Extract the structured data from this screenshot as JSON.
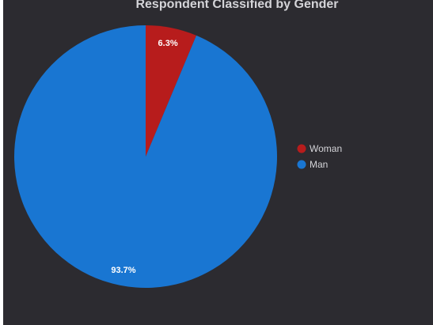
{
  "chart_data": {
    "type": "pie",
    "title": "Respondent Classified by Gender",
    "slices": [
      {
        "label": "Woman",
        "value": 6.3,
        "display": "6.3%",
        "color": "#b71c1c"
      },
      {
        "label": "Man",
        "value": 93.7,
        "display": "93.7%",
        "color": "#1976d2"
      }
    ],
    "legend_position": "right",
    "background": "#2c2b30"
  }
}
